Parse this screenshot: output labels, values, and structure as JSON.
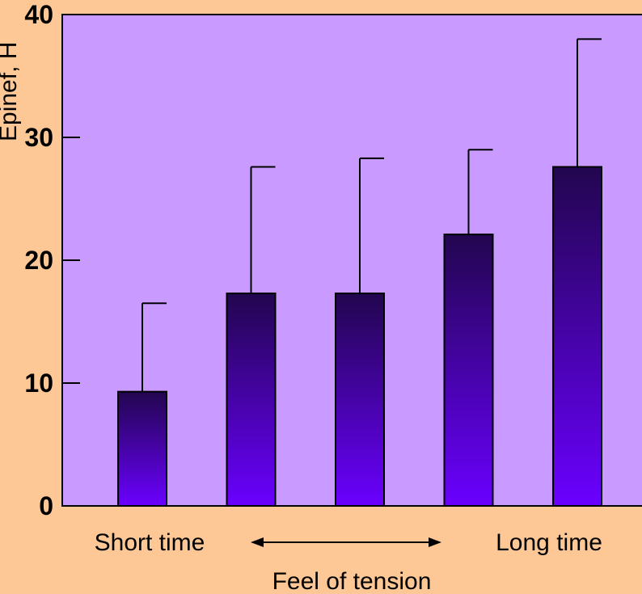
{
  "chart_data": {
    "type": "bar",
    "categories": [
      "",
      "",
      "",
      "",
      ""
    ],
    "values": [
      9.3,
      17.3,
      17.3,
      22.1,
      27.6
    ],
    "error_upper": [
      16.5,
      27.6,
      28.3,
      29.0,
      38.0
    ],
    "ylim": [
      0,
      40
    ],
    "yticks": [
      "0",
      "10",
      "20",
      "30",
      "40"
    ],
    "ylabel": "Epinef, H",
    "xlabel": "Feel of tension",
    "x_left_label": "Short time",
    "x_right_label": "Long time",
    "colors": {
      "page_background": "#fdc896",
      "plot_background": "#c99aff",
      "bar_top": "#22064f",
      "bar_bottom": "#6a00ff"
    }
  }
}
